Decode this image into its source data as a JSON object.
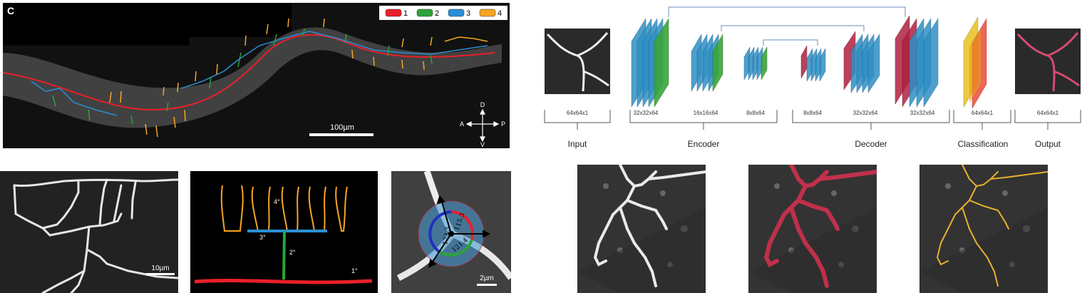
{
  "worm_panel": {
    "panel_letter": "C",
    "legend": [
      {
        "label": "1",
        "color": "#e8202a"
      },
      {
        "label": "2",
        "color": "#2ba33a"
      },
      {
        "label": "3",
        "color": "#2b8fd6"
      },
      {
        "label": "4",
        "color": "#f5a623"
      }
    ],
    "scale_label": "100µm",
    "axes": {
      "dorsal": "D",
      "ventral": "V",
      "anterior": "A",
      "posterior": "P"
    }
  },
  "closeup_panel": {
    "scale_label": "10µm"
  },
  "schematic_panel": {
    "labels": {
      "quaternary": "4°",
      "tertiary": "3°",
      "secondary": "2°",
      "primary": "1°"
    }
  },
  "angle_panel": {
    "angles": [
      "115.3",
      "123.3",
      "121.4"
    ],
    "scale_label": "2µm"
  },
  "unet": {
    "input_dim": "64x64x1",
    "layer_dims": [
      "32x32x64",
      "16x16x64",
      "8x8x64",
      "8x8x64",
      "32x32x64",
      "32x32x64",
      "64x64x1",
      "64x64x1"
    ],
    "stage_labels": {
      "input": "Input",
      "encoder": "Encoder",
      "decoder": "Decoder",
      "classification": "Classification",
      "output": "Output"
    }
  },
  "colors": {
    "blue_block": "#2f8fc4",
    "green_block": "#3aa53a",
    "red_block": "#b02040",
    "yellow_block": "#e8c020",
    "orange_red": "#e84030"
  }
}
